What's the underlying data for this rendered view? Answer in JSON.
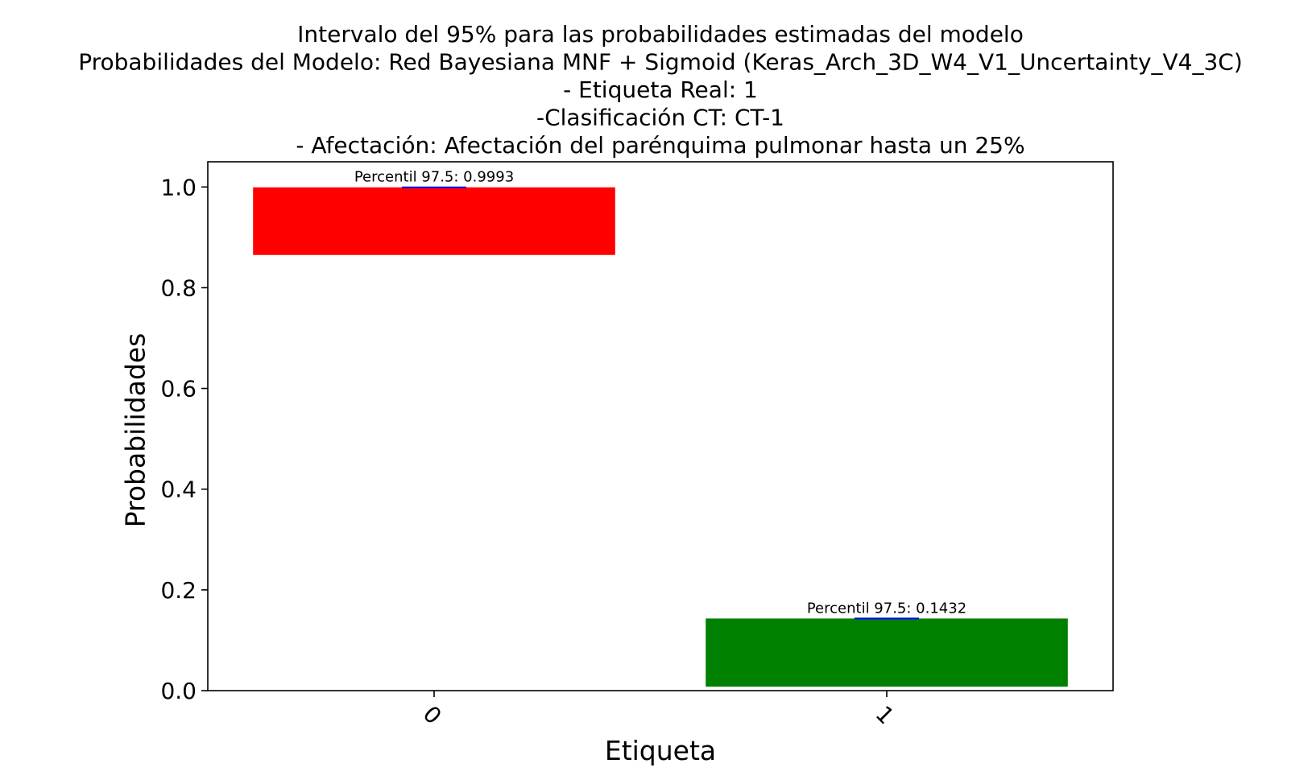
{
  "chart_data": {
    "type": "bar",
    "title_lines": [
      "Intervalo del 95% para las probabilidades estimadas del modelo",
      "Probabilidades del Modelo: Red Bayesiana MNF + Sigmoid (Keras_Arch_3D_W4_V1_Uncertainty_V4_3C)",
      "- Etiqueta Real: 1",
      "-Clasificación CT: CT-1",
      "- Afectación: Afectación del parénquima pulmonar hasta un 25%"
    ],
    "xlabel": "Etiqueta",
    "ylabel": "Probabilidades",
    "categories": [
      "0",
      "1"
    ],
    "bars": [
      {
        "category": "0",
        "low": 0.865,
        "high": 0.9993,
        "color": "#ff0000",
        "annotation": "Percentil 97.5: 0.9993"
      },
      {
        "category": "1",
        "low": 0.008,
        "high": 0.1432,
        "color": "#008000",
        "annotation": "Percentil 97.5: 0.1432"
      }
    ],
    "ylim": [
      0.0,
      1.05
    ],
    "yticks": [
      0.0,
      0.2,
      0.4,
      0.6,
      0.8,
      1.0
    ],
    "ytick_labels": [
      "0.0",
      "0.2",
      "0.4",
      "0.6",
      "0.8",
      "1.0"
    ],
    "marker_color": "#0000ff",
    "grid": false,
    "legend": "none"
  }
}
